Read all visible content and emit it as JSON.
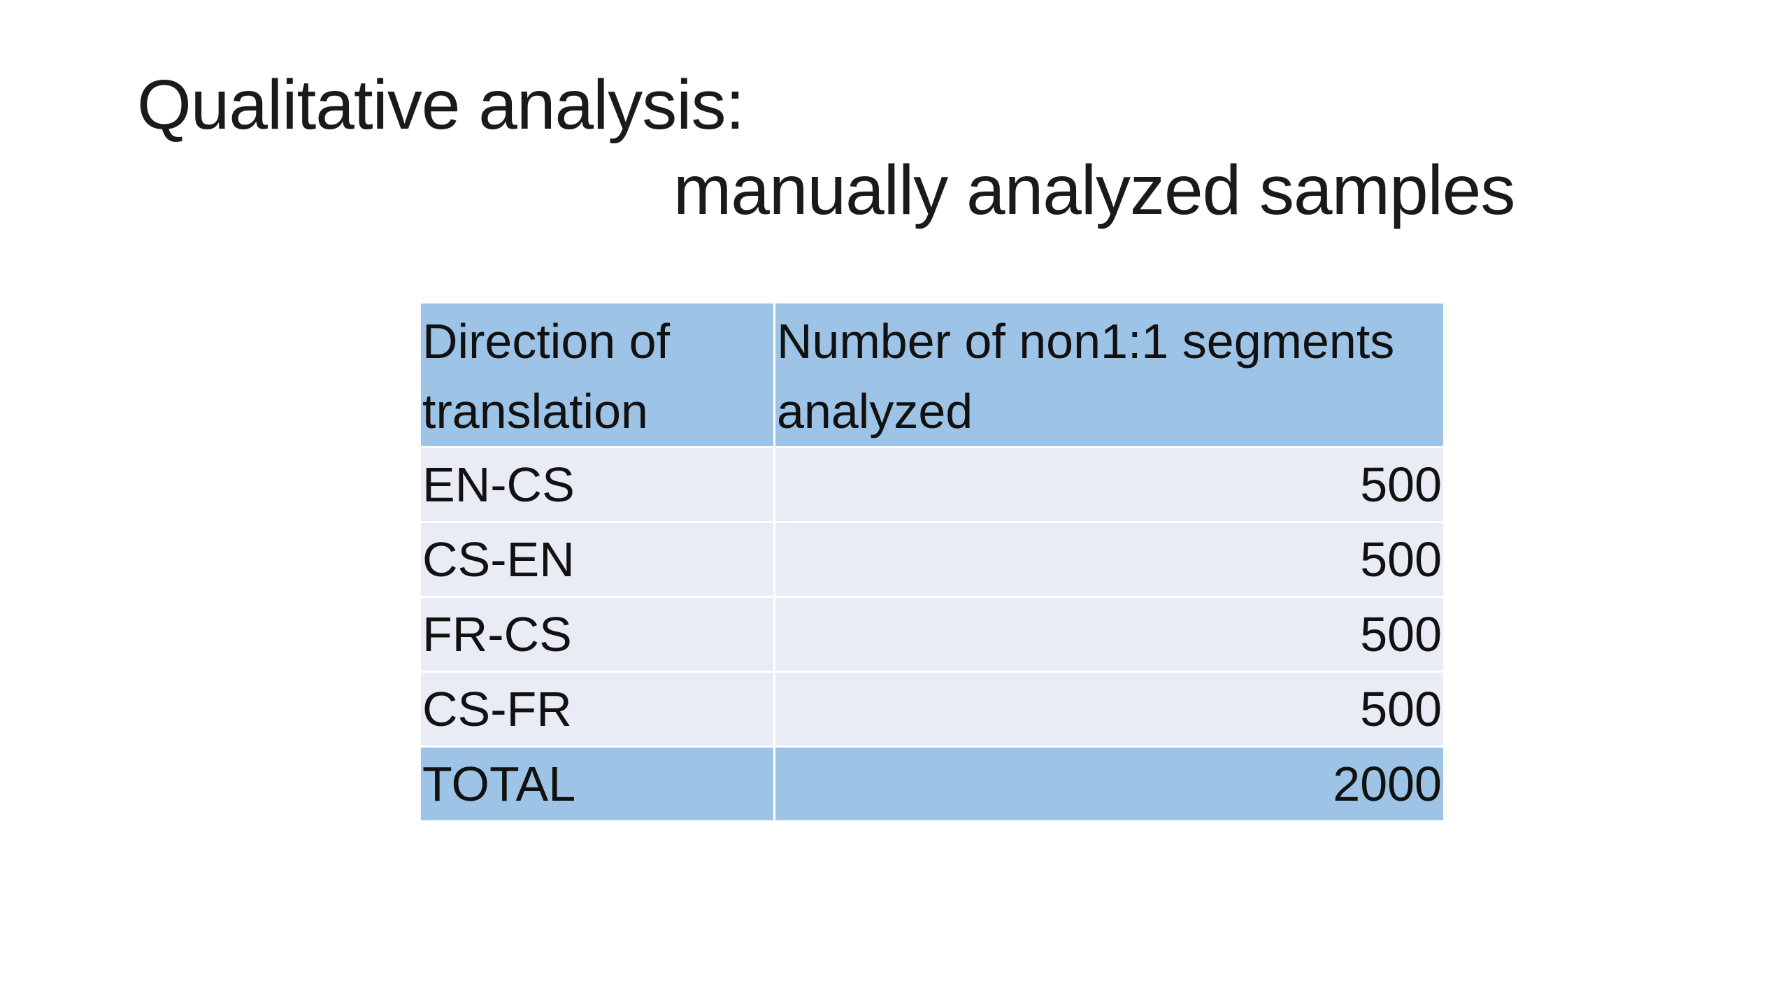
{
  "slide": {
    "title": {
      "line1": "Qualitative analysis:",
      "line2": "manually analyzed samples"
    },
    "table": {
      "header": [
        "Direction of translation",
        "Number of non1:1 segments analyzed"
      ],
      "rows": [
        [
          "EN-CS",
          500
        ],
        [
          "CS-EN",
          500
        ],
        [
          "FR-CS",
          500
        ],
        [
          "CS-FR",
          500
        ]
      ],
      "total": [
        "TOTAL",
        2000
      ]
    }
  }
}
